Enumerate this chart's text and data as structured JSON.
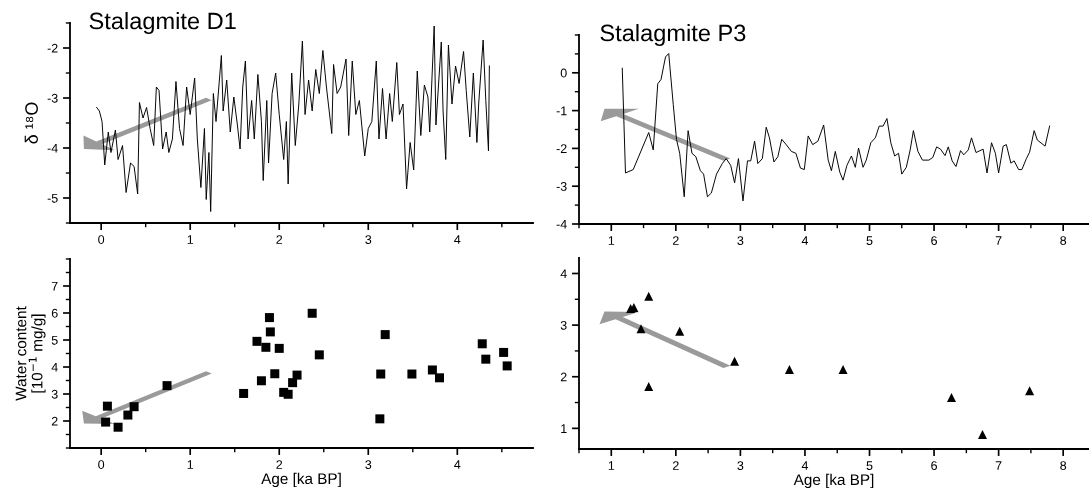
{
  "chart_data": [
    {
      "type": "line",
      "title": "Stalagmite D1",
      "ylabel": "δ ¹⁸O",
      "color": "#000000",
      "x": [
        -0.05,
        -0.02,
        0.01,
        0.04,
        0.08,
        0.11,
        0.16,
        0.19,
        0.24,
        0.28,
        0.33,
        0.37,
        0.41,
        0.43,
        0.47,
        0.51,
        0.55,
        0.59,
        0.62,
        0.65,
        0.69,
        0.73,
        0.76,
        0.8,
        0.84,
        0.88,
        0.92,
        0.96,
        1.0,
        1.05,
        1.08,
        1.12,
        1.16,
        1.18,
        1.21,
        1.23,
        1.26,
        1.29,
        1.35,
        1.37,
        1.41,
        1.45,
        1.49,
        1.53,
        1.56,
        1.59,
        1.62,
        1.65,
        1.69,
        1.72,
        1.76,
        1.8,
        1.82,
        1.86,
        1.88,
        1.92,
        1.96,
        2.0,
        2.05,
        2.08,
        2.1,
        2.14,
        2.18,
        2.22,
        2.26,
        2.29,
        2.33,
        2.37,
        2.41,
        2.45,
        2.49,
        2.53,
        2.59,
        2.61,
        2.65,
        2.69,
        2.75,
        2.78,
        2.82,
        2.86,
        2.9,
        2.96,
        3.0,
        3.04,
        3.09,
        3.12,
        3.16,
        3.2,
        3.24,
        3.27,
        3.32,
        3.35,
        3.39,
        3.43,
        3.47,
        3.51,
        3.55,
        3.59,
        3.63,
        3.67,
        3.69,
        3.74,
        3.76,
        3.82,
        3.84,
        3.87,
        3.9,
        3.94,
        3.98,
        4.02,
        4.07,
        4.1,
        4.14,
        4.18,
        4.22,
        4.24,
        4.29,
        4.32,
        4.35,
        4.36
      ],
      "values": [
        -3.19,
        -3.26,
        -3.47,
        -4.34,
        -3.68,
        -4.09,
        -3.64,
        -4.23,
        -3.95,
        -4.89,
        -4.3,
        -4.37,
        -4.92,
        -3.09,
        -3.4,
        -3.19,
        -3.61,
        -3.95,
        -2.78,
        -2.85,
        -4.02,
        -3.68,
        -4.09,
        -3.82,
        -2.67,
        -3.61,
        -3.95,
        -2.78,
        -3.33,
        -2.6,
        -3.82,
        -4.79,
        -3.61,
        -5.03,
        -4.09,
        -5.27,
        -2.91,
        -3.47,
        -2.15,
        -3.26,
        -2.64,
        -3.68,
        -2.98,
        -3.54,
        -4.02,
        -2.78,
        -2.26,
        -3.82,
        -3.05,
        -3.82,
        -2.53,
        -3.47,
        -4.65,
        -3.05,
        -4.3,
        -2.91,
        -2.5,
        -3.33,
        -4.23,
        -3.47,
        -4.72,
        -2.5,
        -3.95,
        -3.12,
        -1.86,
        -3.33,
        -2.64,
        -3.26,
        -2.43,
        -2.91,
        -2.05,
        -2.78,
        -3.71,
        -2.33,
        -2.91,
        -2.78,
        -2.22,
        -3.75,
        -2.26,
        -3.33,
        -3.05,
        -4.16,
        -3.61,
        -3.47,
        -2.26,
        -3.82,
        -2.81,
        -3.82,
        -2.91,
        -3.47,
        -2.29,
        -3.33,
        -3.12,
        -4.82,
        -3.89,
        -4.44,
        -2.46,
        -3.75,
        -2.74,
        -2.98,
        -3.68,
        -1.56,
        -3.54,
        -1.88,
        -3.26,
        -4.23,
        -1.94,
        -3.12,
        -2.36,
        -2.71,
        -2.07,
        -2.85,
        -3.78,
        -2.5,
        -3.89,
        -3.12,
        -1.84,
        -3.05,
        -4.06,
        -2.36
      ],
      "xlim": [
        -0.35,
        4.85
      ],
      "ylim": [
        -5.5,
        -1.5
      ],
      "xticks": [
        0,
        1,
        2,
        3,
        4
      ],
      "yticks": [
        -5,
        -4,
        -3,
        -2
      ],
      "grid": false,
      "legend": false
    },
    {
      "type": "line",
      "title": "Stalagmite P3",
      "color": "#000000",
      "x": [
        1.17,
        1.22,
        1.34,
        1.58,
        1.65,
        1.72,
        1.77,
        1.84,
        1.89,
        1.96,
        2.01,
        2.06,
        2.13,
        2.19,
        2.25,
        2.31,
        2.38,
        2.43,
        2.49,
        2.55,
        2.63,
        2.72,
        2.78,
        2.85,
        2.91,
        2.97,
        3.04,
        3.11,
        3.16,
        3.22,
        3.27,
        3.34,
        3.4,
        3.45,
        3.52,
        3.58,
        3.64,
        3.71,
        3.79,
        3.86,
        3.93,
        3.99,
        4.05,
        4.12,
        4.2,
        4.29,
        4.36,
        4.41,
        4.47,
        4.54,
        4.59,
        4.65,
        4.72,
        4.78,
        4.83,
        4.9,
        4.95,
        5.02,
        5.09,
        5.15,
        5.21,
        5.27,
        5.33,
        5.39,
        5.45,
        5.5,
        5.57,
        5.63,
        5.68,
        5.75,
        5.82,
        5.92,
        5.98,
        6.04,
        6.1,
        6.17,
        6.22,
        6.28,
        6.34,
        6.41,
        6.46,
        6.53,
        6.58,
        6.65,
        6.76,
        6.82,
        6.89,
        6.95,
        7.0,
        7.07,
        7.12,
        7.19,
        7.24,
        7.31,
        7.36,
        7.43,
        7.48,
        7.55,
        7.6,
        7.72,
        7.79
      ],
      "values": [
        0.12,
        -2.65,
        -2.56,
        -1.58,
        -2.04,
        -0.29,
        -0.18,
        0.42,
        0.51,
        -0.84,
        -1.76,
        -2.13,
        -3.28,
        -1.53,
        -2.13,
        -2.22,
        -2.59,
        -2.68,
        -3.28,
        -3.18,
        -2.68,
        -2.4,
        -2.27,
        -2.45,
        -2.91,
        -2.27,
        -3.39,
        -2.33,
        -2.33,
        -1.81,
        -2.4,
        -2.27,
        -1.44,
        -1.72,
        -2.36,
        -2.22,
        -1.76,
        -1.9,
        -2.08,
        -2.13,
        -2.52,
        -2.56,
        -1.67,
        -1.9,
        -1.81,
        -1.38,
        -2.31,
        -2.59,
        -2.08,
        -2.63,
        -2.84,
        -2.45,
        -2.2,
        -2.5,
        -1.99,
        -2.5,
        -2.31,
        -1.85,
        -1.72,
        -1.41,
        -1.41,
        -1.21,
        -1.85,
        -2.2,
        -2.13,
        -2.68,
        -2.5,
        -2.04,
        -1.53,
        -2.08,
        -2.31,
        -2.31,
        -2.24,
        -1.96,
        -2.02,
        -2.19,
        -1.96,
        -2.33,
        -2.48,
        -2.06,
        -2.17,
        -2.04,
        -1.72,
        -2.11,
        -2.02,
        -2.65,
        -1.85,
        -2.13,
        -2.65,
        -1.94,
        -1.9,
        -2.39,
        -2.33,
        -2.56,
        -2.56,
        -2.27,
        -2.1,
        -1.53,
        -1.78,
        -1.94,
        -1.41
      ],
      "xlim": [
        0.5,
        8.4
      ],
      "ylim": [
        -4,
        1
      ],
      "xticks": [
        1,
        2,
        3,
        4,
        5,
        6,
        7,
        8
      ],
      "yticks": [
        -4,
        -3,
        -2,
        -1,
        0
      ],
      "grid": false,
      "legend": false
    },
    {
      "type": "scatter",
      "xlabel": "Age [ka BP]",
      "ylabel": "Water content\n[10$^{−1}$ mg/g]",
      "color": "#000000",
      "marker": "square",
      "x": [
        0.05,
        0.07,
        0.19,
        0.3,
        0.37,
        0.74,
        1.6,
        1.75,
        1.8,
        1.85,
        1.89,
        1.9,
        1.95,
        2.0,
        2.05,
        2.1,
        2.15,
        2.2,
        2.37,
        2.45,
        3.13,
        3.14,
        3.19,
        3.49,
        3.72,
        3.8,
        4.28,
        4.32,
        4.52,
        4.56
      ],
      "values": [
        1.96,
        2.55,
        1.77,
        2.22,
        2.53,
        3.31,
        3.02,
        4.95,
        3.49,
        4.73,
        5.83,
        5.3,
        3.75,
        4.69,
        3.06,
        2.99,
        3.42,
        3.7,
        5.99,
        4.45,
        2.08,
        3.74,
        5.2,
        3.74,
        3.89,
        3.6,
        4.86,
        4.29,
        4.54,
        4.04
      ],
      "xlim": [
        -0.35,
        4.85
      ],
      "ylim": [
        1,
        8
      ],
      "xticks": [
        0,
        1,
        2,
        3,
        4
      ],
      "yticks": [
        2,
        3,
        4,
        5,
        6,
        7
      ],
      "grid": false,
      "legend": false
    },
    {
      "type": "scatter",
      "xlabel": "Age [ka BP]",
      "color": "#000000",
      "marker": "triangle",
      "x": [
        1.3,
        1.35,
        1.58,
        1.46,
        2.06,
        1.58,
        2.91,
        3.76,
        4.59,
        6.27,
        6.75,
        7.48
      ],
      "values": [
        3.32,
        3.34,
        3.56,
        2.93,
        2.88,
        1.81,
        2.3,
        2.14,
        2.14,
        1.6,
        0.88,
        1.73
      ],
      "xlim": [
        0.5,
        8.4
      ],
      "ylim": [
        0.6,
        4.3
      ],
      "xticks": [
        1,
        2,
        3,
        4,
        5,
        6,
        7,
        8
      ],
      "yticks": [
        1,
        2,
        3,
        4
      ],
      "grid": false,
      "legend": false
    }
  ]
}
